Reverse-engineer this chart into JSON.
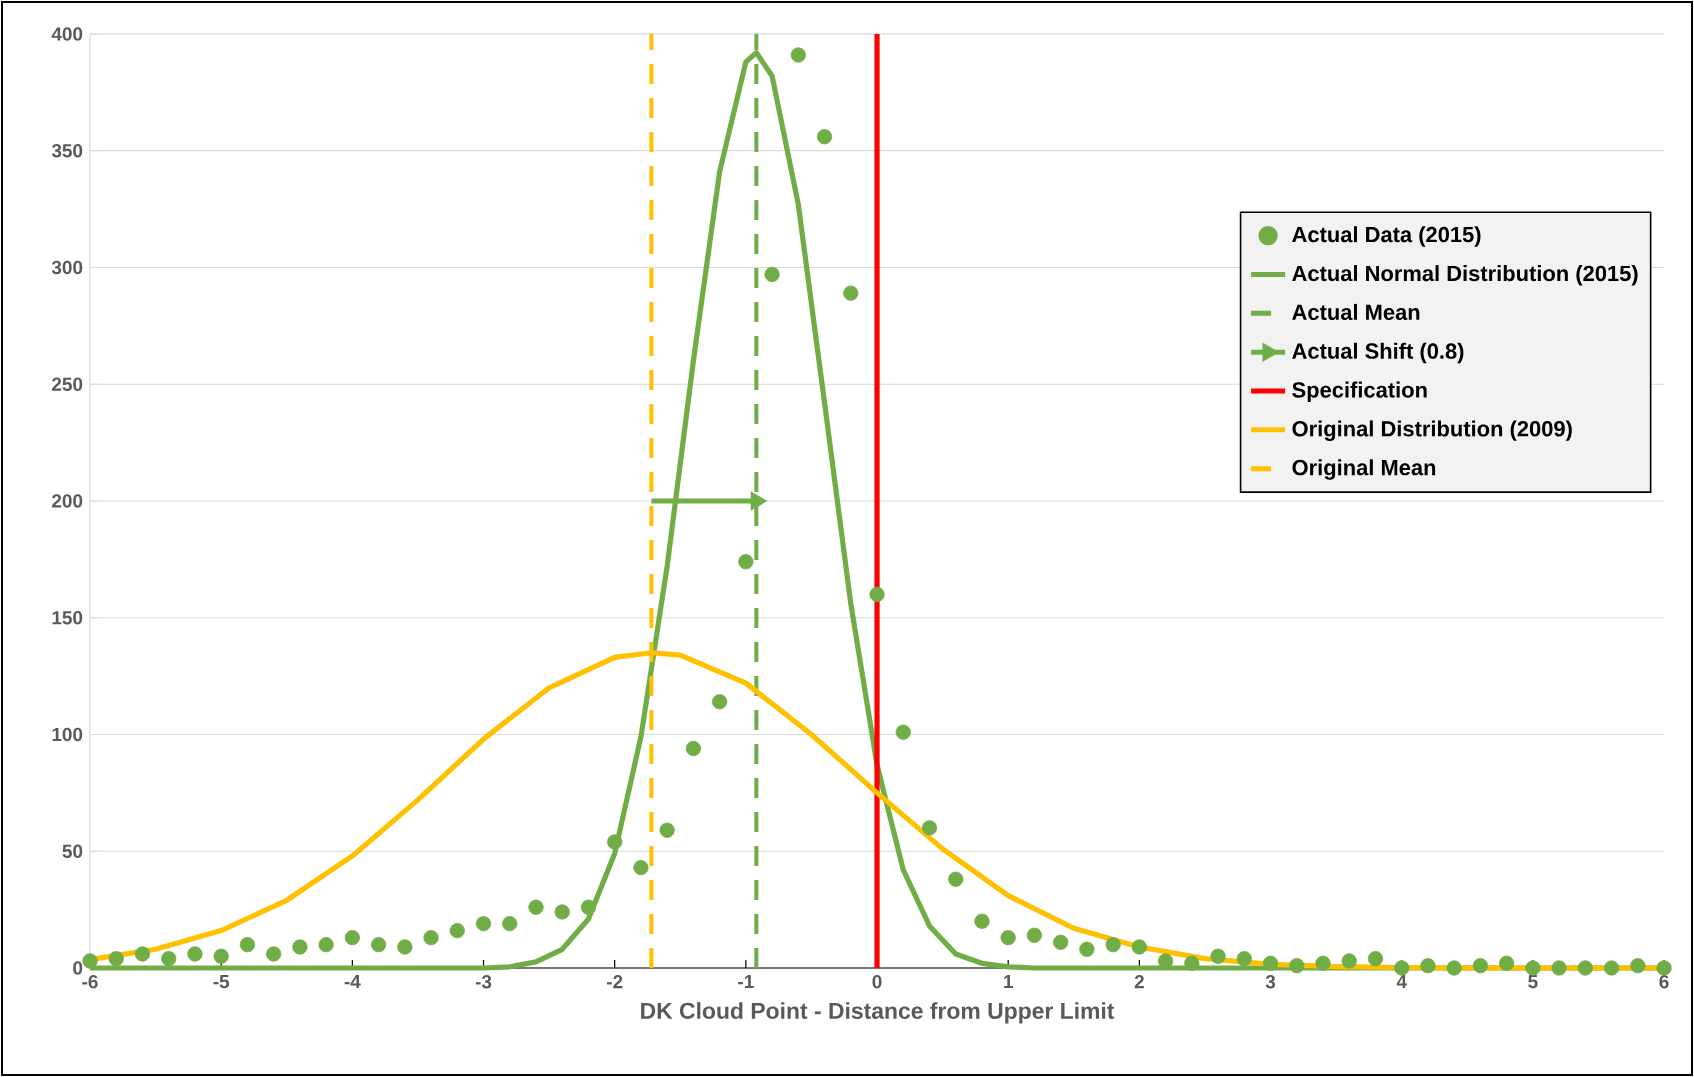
{
  "chart_data": {
    "type": "scatter",
    "xlabel": "DK Cloud Point - Distance from Upper Limit",
    "xlim": [
      -6,
      6
    ],
    "xticks": [
      -6,
      -5,
      -4,
      -3,
      -2,
      -1,
      0,
      1,
      2,
      3,
      4,
      5,
      6
    ],
    "ylim": [
      0,
      400
    ],
    "yticks": [
      0,
      50,
      100,
      150,
      200,
      250,
      300,
      350,
      400
    ],
    "grid": "y",
    "legend": "right",
    "series": [
      {
        "name": "Actual Data (2015)",
        "marker": "circle",
        "color": "#70ad47",
        "x": [
          -6,
          -5.8,
          -5.6,
          -5.4,
          -5.2,
          -5,
          -4.8,
          -4.6,
          -4.4,
          -4.2,
          -4,
          -3.8,
          -3.6,
          -3.4,
          -3.2,
          -3,
          -2.8,
          -2.6,
          -2.4,
          -2.2,
          -2,
          -1.8,
          -1.6,
          -1.4,
          -1.2,
          -1,
          -0.8,
          -0.6,
          -0.4,
          -0.2,
          0,
          0.2,
          0.4,
          0.6,
          0.8,
          1,
          1.2,
          1.4,
          1.6,
          1.8,
          2,
          2.2,
          2.4,
          2.6,
          2.8,
          3,
          3.2,
          3.4,
          3.6,
          3.8,
          4,
          4.2,
          4.4,
          4.6,
          4.8,
          5,
          5.2,
          5.4,
          5.6,
          5.8,
          6
        ],
        "values": [
          3,
          4,
          6,
          4,
          6,
          5,
          10,
          6,
          9,
          10,
          13,
          10,
          9,
          13,
          16,
          19,
          19,
          26,
          24,
          26,
          54,
          43,
          59,
          94,
          114,
          174,
          297,
          391,
          356,
          289,
          160,
          101,
          60,
          38,
          20,
          13,
          14,
          11,
          8,
          10,
          9,
          3,
          2,
          5,
          4,
          2,
          1,
          2,
          3,
          4,
          0,
          1,
          0,
          1,
          2,
          0,
          0,
          0,
          0,
          1,
          0
        ]
      },
      {
        "name": "Actual Normal Distribution (2015)",
        "type": "line",
        "line_style": "solid",
        "color": "#70ad47",
        "x": [
          -6,
          -4,
          -3,
          -2.8,
          -2.6,
          -2.4,
          -2.2,
          -2,
          -1.8,
          -1.6,
          -1.4,
          -1.2,
          -1,
          -0.92,
          -0.8,
          -0.6,
          -0.4,
          -0.2,
          0,
          0.2,
          0.4,
          0.6,
          0.8,
          1,
          1.2,
          2,
          4,
          6
        ],
        "values": [
          0,
          0,
          0,
          0.5,
          2.6,
          8,
          21,
          49,
          99,
          172,
          260,
          341,
          388,
          392,
          382,
          327,
          242,
          156,
          87,
          42,
          18,
          6,
          2,
          0.5,
          0,
          0,
          0,
          0
        ]
      },
      {
        "name": "Actual Mean",
        "type": "line",
        "line_style": "dashed",
        "color": "#70ad47",
        "x": [
          -0.92,
          -0.92
        ],
        "values": [
          0,
          400
        ]
      },
      {
        "name": "Actual Shift (0.8)",
        "type": "line",
        "line_style": "solid",
        "color": "#70ad47",
        "x": [
          -1.72,
          -0.92
        ],
        "values": [
          200,
          200
        ]
      },
      {
        "name": "Specification",
        "type": "line",
        "line_style": "solid",
        "color": "#ff0000",
        "x": [
          0,
          0
        ],
        "values": [
          0,
          400
        ]
      },
      {
        "name": "Original Distribution (2009)",
        "type": "line",
        "line_style": "solid",
        "color": "#ffc000",
        "x": [
          -6,
          -5.5,
          -5,
          -4.5,
          -4,
          -3.5,
          -3,
          -2.5,
          -2,
          -1.72,
          -1.5,
          -1,
          -0.5,
          0,
          0.5,
          1,
          1.5,
          2,
          2.5,
          3,
          3.5,
          4,
          4.5,
          5,
          5.5,
          6
        ],
        "values": [
          3.6,
          8,
          16,
          29,
          48,
          72,
          98,
          120,
          133,
          135,
          134,
          122,
          100,
          75,
          51,
          31,
          17,
          9,
          4,
          1.6,
          0.6,
          0.2,
          0,
          0,
          0,
          0
        ]
      },
      {
        "name": "Original Mean",
        "type": "line",
        "line_style": "dashed",
        "color": "#ffc000",
        "x": [
          -1.72,
          -1.72
        ],
        "values": [
          0,
          400
        ]
      }
    ]
  }
}
